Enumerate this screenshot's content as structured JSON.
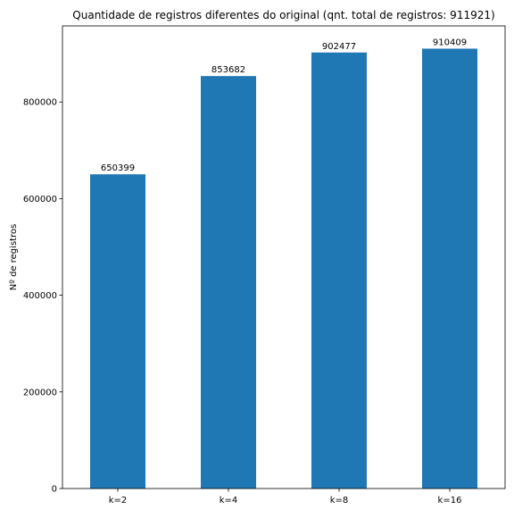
{
  "chart_data": {
    "type": "bar",
    "title": "Quantidade de registros diferentes do original (qnt. total de registros: 911921)",
    "xlabel": "",
    "ylabel": "Nº de registros",
    "categories": [
      "k=2",
      "k=4",
      "k=8",
      "k=16"
    ],
    "values": [
      650399,
      853682,
      902477,
      910409
    ],
    "data_labels": [
      "650399",
      "853682",
      "902477",
      "910409"
    ],
    "ylim": [
      0,
      957517
    ],
    "yticks": [
      0,
      200000,
      400000,
      600000,
      800000
    ],
    "ytick_labels": [
      "0",
      "200000",
      "400000",
      "600000",
      "800000"
    ],
    "grid": false,
    "legend": "none",
    "colors": {
      "bar": "#1f77b4",
      "axis": "#000000",
      "background": "#ffffff"
    }
  }
}
